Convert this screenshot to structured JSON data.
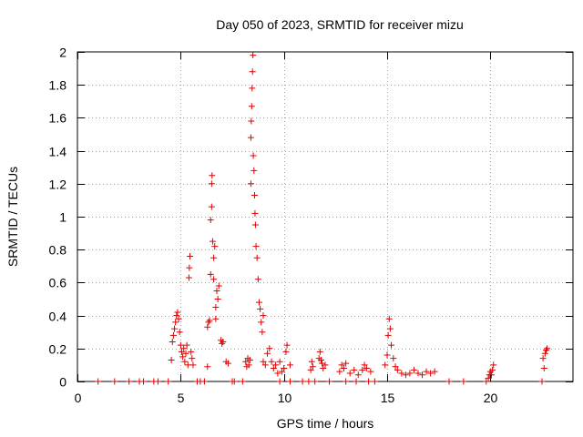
{
  "chart_data": {
    "type": "scatter",
    "title": "Day 050 of 2023, SRMTID for receiver mizu",
    "xlabel": "GPS time / hours",
    "ylabel": "SRMTID / TECUs",
    "xlim": [
      0,
      24
    ],
    "ylim": [
      0,
      2
    ],
    "xticks": [
      0,
      5,
      10,
      15,
      20
    ],
    "xtick_labels": [
      "0",
      "5",
      "10",
      "15",
      "20"
    ],
    "yticks": [
      0,
      0.2,
      0.4,
      0.6,
      0.8,
      1.0,
      1.2,
      1.4,
      1.6,
      1.8,
      2.0
    ],
    "ytick_labels": [
      "0",
      "0.2",
      "0.4",
      "0.6",
      "0.8",
      "1",
      "1.2",
      "1.4",
      "1.6",
      "1.8",
      "2"
    ],
    "grid": true,
    "marker": "+",
    "marker_color": "#e00000",
    "series": [
      {
        "name": "SRMTID",
        "points": [
          [
            1.0,
            0
          ],
          [
            1.8,
            0
          ],
          [
            2.5,
            0
          ],
          [
            3.0,
            0
          ],
          [
            3.2,
            0
          ],
          [
            3.7,
            0
          ],
          [
            3.9,
            0
          ],
          [
            4.4,
            0
          ],
          [
            4.55,
            0.13
          ],
          [
            4.6,
            0.24
          ],
          [
            4.65,
            0.28
          ],
          [
            4.7,
            0.32
          ],
          [
            4.75,
            0.36
          ],
          [
            4.8,
            0.4
          ],
          [
            4.85,
            0.42
          ],
          [
            4.9,
            0.38
          ],
          [
            4.95,
            0.3
          ],
          [
            5.0,
            0.22
          ],
          [
            5.05,
            0.18
          ],
          [
            5.1,
            0.15
          ],
          [
            5.15,
            0.2
          ],
          [
            5.2,
            0.12
          ],
          [
            5.25,
            0.17
          ],
          [
            5.3,
            0.22
          ],
          [
            5.35,
            0.1
          ],
          [
            5.4,
            0.63
          ],
          [
            5.42,
            0.69
          ],
          [
            5.45,
            0.76
          ],
          [
            5.5,
            0.18
          ],
          [
            5.55,
            0.14
          ],
          [
            5.6,
            0.1
          ],
          [
            5.8,
            0
          ],
          [
            5.95,
            0
          ],
          [
            6.15,
            0
          ],
          [
            6.3,
            0.09
          ],
          [
            6.3,
            0.33
          ],
          [
            6.35,
            0.36
          ],
          [
            6.4,
            0.37
          ],
          [
            6.45,
            0.65
          ],
          [
            6.45,
            0.98
          ],
          [
            6.5,
            1.06
          ],
          [
            6.5,
            1.2
          ],
          [
            6.52,
            1.25
          ],
          [
            6.55,
            0.85
          ],
          [
            6.6,
            0.75
          ],
          [
            6.6,
            0.62
          ],
          [
            6.65,
            0.82
          ],
          [
            6.7,
            0.45
          ],
          [
            6.7,
            0.38
          ],
          [
            6.75,
            0.55
          ],
          [
            6.8,
            0.5
          ],
          [
            6.85,
            0.58
          ],
          [
            6.95,
            0.25
          ],
          [
            7.0,
            0.23
          ],
          [
            7.05,
            0.24
          ],
          [
            7.2,
            0.12
          ],
          [
            7.3,
            0.11
          ],
          [
            7.5,
            0
          ],
          [
            7.6,
            0
          ],
          [
            8.0,
            0
          ],
          [
            8.15,
            0.12
          ],
          [
            8.2,
            0.09
          ],
          [
            8.25,
            0.14
          ],
          [
            8.3,
            0.1
          ],
          [
            8.35,
            0.13
          ],
          [
            8.4,
            1.2
          ],
          [
            8.4,
            1.48
          ],
          [
            8.42,
            1.58
          ],
          [
            8.44,
            1.67
          ],
          [
            8.46,
            1.78
          ],
          [
            8.48,
            1.88
          ],
          [
            8.5,
            1.98
          ],
          [
            8.52,
            1.37
          ],
          [
            8.55,
            1.28
          ],
          [
            8.58,
            1.13
          ],
          [
            8.6,
            1.02
          ],
          [
            8.62,
            0.95
          ],
          [
            8.65,
            0.82
          ],
          [
            8.7,
            0.75
          ],
          [
            8.75,
            0.62
          ],
          [
            8.8,
            0.48
          ],
          [
            8.85,
            0.44
          ],
          [
            8.9,
            0.36
          ],
          [
            8.95,
            0.3
          ],
          [
            9.0,
            0.4
          ],
          [
            9.0,
            0.12
          ],
          [
            9.1,
            0.1
          ],
          [
            9.2,
            0.17
          ],
          [
            9.3,
            0.2
          ],
          [
            9.4,
            0.12
          ],
          [
            9.5,
            0.08
          ],
          [
            9.6,
            0.1
          ],
          [
            9.7,
            0.05
          ],
          [
            9.8,
            0.12
          ],
          [
            9.9,
            0.06
          ],
          [
            10.0,
            0.08
          ],
          [
            10.1,
            0.18
          ],
          [
            10.15,
            0.22
          ],
          [
            10.3,
            0.1
          ],
          [
            9.8,
            0
          ],
          [
            10.3,
            0
          ],
          [
            10.9,
            0
          ],
          [
            11.2,
            0
          ],
          [
            11.5,
            0
          ],
          [
            12.2,
            0
          ],
          [
            11.3,
            0.07
          ],
          [
            11.35,
            0.12
          ],
          [
            11.4,
            0.09
          ],
          [
            11.7,
            0.14
          ],
          [
            11.75,
            0.18
          ],
          [
            11.8,
            0.13
          ],
          [
            11.85,
            0.11
          ],
          [
            11.9,
            0.08
          ],
          [
            12.0,
            0.1
          ],
          [
            12.7,
            0.06
          ],
          [
            12.8,
            0.1
          ],
          [
            12.9,
            0.08
          ],
          [
            13.0,
            0.11
          ],
          [
            13.2,
            0.05
          ],
          [
            13.4,
            0.07
          ],
          [
            13.6,
            0.04
          ],
          [
            13.8,
            0.07
          ],
          [
            13.9,
            0.1
          ],
          [
            14.0,
            0.08
          ],
          [
            14.2,
            0.06
          ],
          [
            13.0,
            0
          ],
          [
            13.5,
            0
          ],
          [
            14.1,
            0
          ],
          [
            14.4,
            0
          ],
          [
            14.9,
            0.1
          ],
          [
            15.0,
            0.16
          ],
          [
            15.05,
            0.28
          ],
          [
            15.1,
            0.38
          ],
          [
            15.15,
            0.32
          ],
          [
            15.2,
            0.22
          ],
          [
            15.3,
            0.14
          ],
          [
            15.4,
            0.09
          ],
          [
            15.5,
            0.07
          ],
          [
            15.7,
            0.05
          ],
          [
            15.9,
            0.04
          ],
          [
            16.1,
            0.05
          ],
          [
            16.3,
            0.07
          ],
          [
            16.5,
            0.05
          ],
          [
            16.7,
            0.04
          ],
          [
            16.9,
            0.06
          ],
          [
            17.1,
            0.05
          ],
          [
            17.3,
            0.06
          ],
          [
            18.0,
            0
          ],
          [
            18.7,
            0
          ],
          [
            19.8,
            0
          ],
          [
            19.9,
            0.02
          ],
          [
            19.95,
            0.04
          ],
          [
            20.0,
            0.06
          ],
          [
            20.05,
            0.04
          ],
          [
            20.1,
            0.07
          ],
          [
            20.15,
            0.1
          ],
          [
            22.5,
            0
          ],
          [
            22.55,
            0.14
          ],
          [
            22.6,
            0.08
          ],
          [
            22.65,
            0.17
          ],
          [
            22.7,
            0.19
          ],
          [
            22.75,
            0.2
          ]
        ]
      }
    ]
  }
}
